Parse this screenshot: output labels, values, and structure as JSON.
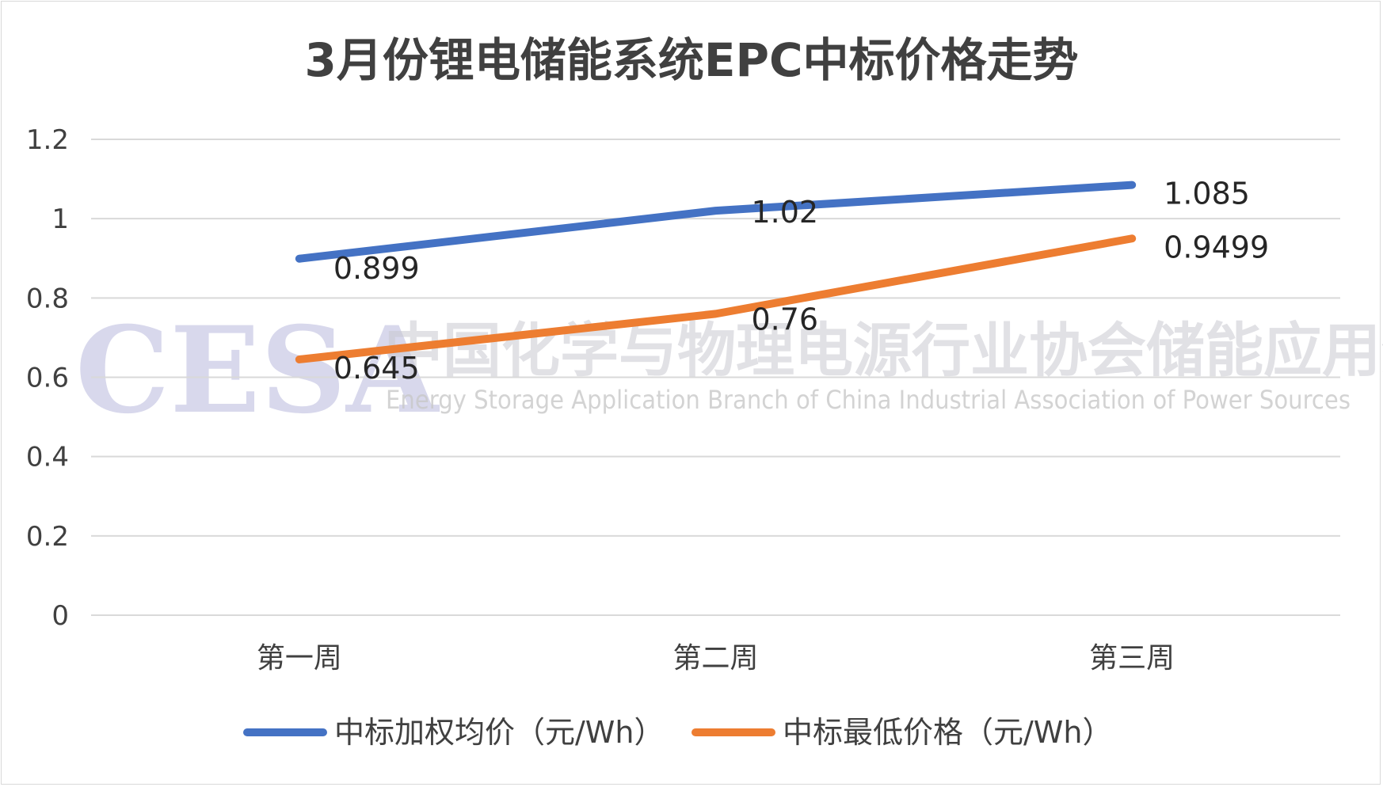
{
  "watermark": {
    "logo": "CESA",
    "name_cn": "中国化学与物理电源行业协会储能应用分会",
    "name_en": "Energy Storage Application Branch of China Industrial Association of Power Sources"
  },
  "chart_data": {
    "type": "line",
    "title": "3月份锂电储能系统EPC中标价格走势",
    "categories": [
      "第一周",
      "第二周",
      "第三周"
    ],
    "ylim": [
      0,
      1.2
    ],
    "yticks": [
      "0",
      "0.2",
      "0.4",
      "0.6",
      "0.8",
      "1",
      "1.2"
    ],
    "grid": true,
    "legend_position": "bottom",
    "series": [
      {
        "name": "中标加权均价（元/Wh）",
        "color": "#4472c4",
        "values": [
          0.899,
          1.02,
          1.085
        ],
        "labels": [
          "0.899",
          "1.02",
          "1.085"
        ]
      },
      {
        "name": "中标最低价格（元/Wh）",
        "color": "#ed7d31",
        "values": [
          0.645,
          0.76,
          0.9499
        ],
        "labels": [
          "0.645",
          "0.76",
          "0.9499"
        ]
      }
    ]
  }
}
